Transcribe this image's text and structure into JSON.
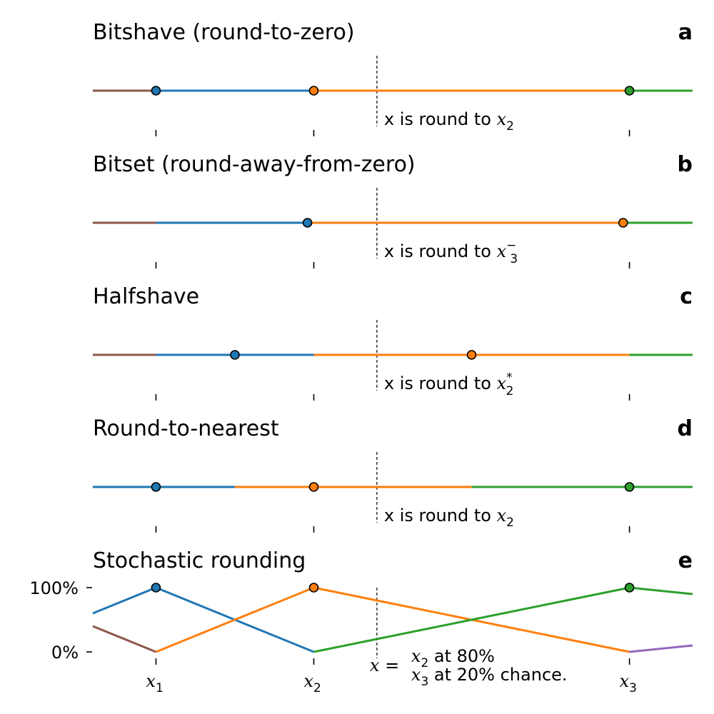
{
  "colors": {
    "brown": "#8c564b",
    "blue": "#1f77b4",
    "orange": "#ff7f0e",
    "green": "#2ca02c",
    "purple": "#9467bd"
  },
  "chart_data": [
    {
      "type": "line",
      "letter": "a",
      "title": "Bitshave (round-to-zero)",
      "xlim": [
        0.6,
        4.4
      ],
      "x_ticks": [
        1,
        2,
        4
      ],
      "x_value": 2.4,
      "segments": [
        {
          "color": "brown",
          "x": [
            0.6,
            1
          ]
        },
        {
          "color": "blue",
          "x": [
            1,
            2
          ]
        },
        {
          "color": "orange",
          "x": [
            2,
            4
          ]
        },
        {
          "color": "green",
          "x": [
            4,
            4.4
          ]
        }
      ],
      "points": [
        {
          "x": 1,
          "color": "blue"
        },
        {
          "x": 2,
          "color": "orange"
        },
        {
          "x": 4,
          "color": "green"
        }
      ],
      "annotation": {
        "prefix": "x is round to ",
        "var": "x",
        "sub": "2",
        "sup": ""
      }
    },
    {
      "type": "line",
      "letter": "b",
      "title": "Bitset (round-away-from-zero)",
      "xlim": [
        0.6,
        4.4
      ],
      "x_ticks": [
        1,
        2,
        4
      ],
      "x_value": 2.4,
      "segments": [
        {
          "color": "brown",
          "x": [
            0.6,
            1
          ]
        },
        {
          "color": "blue",
          "x": [
            1,
            1.96
          ]
        },
        {
          "color": "orange",
          "x": [
            1.96,
            3.96
          ]
        },
        {
          "color": "green",
          "x": [
            3.96,
            4.4
          ]
        }
      ],
      "points": [
        {
          "x": 1.96,
          "color": "blue"
        },
        {
          "x": 3.96,
          "color": "orange"
        }
      ],
      "annotation": {
        "prefix": "x is round to ",
        "var": "x",
        "sub": "3",
        "sup": "−"
      }
    },
    {
      "type": "line",
      "letter": "c",
      "title": "Halfshave",
      "xlim": [
        0.6,
        4.4
      ],
      "x_ticks": [
        1,
        2,
        4
      ],
      "x_value": 2.4,
      "segments": [
        {
          "color": "brown",
          "x": [
            0.6,
            1
          ]
        },
        {
          "color": "blue",
          "x": [
            1,
            2
          ]
        },
        {
          "color": "orange",
          "x": [
            2,
            4
          ]
        },
        {
          "color": "green",
          "x": [
            4,
            4.4
          ]
        }
      ],
      "points": [
        {
          "x": 1.5,
          "color": "blue"
        },
        {
          "x": 3,
          "color": "orange"
        }
      ],
      "annotation": {
        "prefix": "x is round to ",
        "var": "x",
        "sub": "2",
        "sup": "*"
      }
    },
    {
      "type": "line",
      "letter": "d",
      "title": "Round-to-nearest",
      "xlim": [
        0.6,
        4.4
      ],
      "x_ticks": [
        1,
        2,
        4
      ],
      "x_value": 2.4,
      "segments": [
        {
          "color": "blue",
          "x": [
            0.6,
            1.5
          ]
        },
        {
          "color": "orange",
          "x": [
            1.5,
            3
          ]
        },
        {
          "color": "green",
          "x": [
            3,
            4.4
          ]
        }
      ],
      "points": [
        {
          "x": 1,
          "color": "blue"
        },
        {
          "x": 2,
          "color": "orange"
        },
        {
          "x": 4,
          "color": "green"
        }
      ],
      "annotation": {
        "prefix": "x is round to ",
        "var": "x",
        "sub": "2",
        "sup": ""
      }
    },
    {
      "type": "line",
      "letter": "e",
      "title": "Stochastic rounding",
      "xlim": [
        0.6,
        4.4
      ],
      "ylim": [
        0,
        100
      ],
      "y_ticks": [
        {
          "value": 100,
          "label": "100%"
        },
        {
          "value": 0,
          "label": "0%"
        }
      ],
      "x_ticks": [
        {
          "value": 1,
          "var": "x",
          "sub": "1"
        },
        {
          "value": 2,
          "var": "x",
          "sub": "2"
        },
        {
          "value": 4,
          "var": "x",
          "sub": "3"
        }
      ],
      "x_value": 2.4,
      "series": [
        {
          "color": "brown",
          "x": [
            0.6,
            1
          ],
          "y": [
            40,
            0
          ]
        },
        {
          "color": "blue",
          "x": [
            0.6,
            1,
            2
          ],
          "y": [
            60,
            100,
            0
          ]
        },
        {
          "color": "orange",
          "x": [
            1,
            2,
            4
          ],
          "y": [
            0,
            100,
            0
          ]
        },
        {
          "color": "green",
          "x": [
            2,
            4,
            4.4
          ],
          "y": [
            0,
            100,
            90
          ]
        },
        {
          "color": "purple",
          "x": [
            4,
            4.4
          ],
          "y": [
            0,
            10
          ]
        }
      ],
      "points": [
        {
          "x": 1,
          "y": 100,
          "color": "blue"
        },
        {
          "x": 2,
          "y": 100,
          "color": "orange"
        },
        {
          "x": 4,
          "y": 100,
          "color": "green"
        }
      ],
      "annotation": {
        "lhs": "x",
        "eq": " = ",
        "line1_var": "x",
        "line1_sub": "2",
        "line1_text": " at 80%",
        "line2_var": "x",
        "line2_sub": "3",
        "line2_text": " at 20% chance."
      }
    }
  ]
}
